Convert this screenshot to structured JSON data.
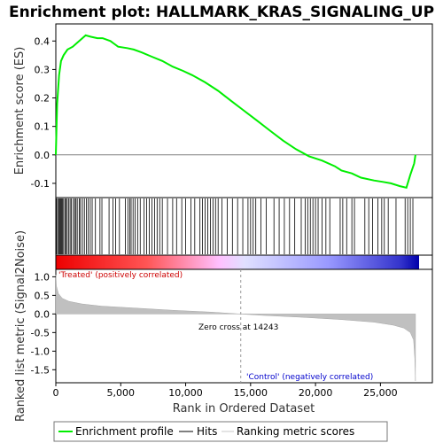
{
  "chart_data": [
    {
      "type": "line",
      "title": "Enrichment plot: HALLMARK_KRAS_SIGNALING_UP",
      "ylabel": "Enrichment score (ES)",
      "ylim": [
        -0.15,
        0.46
      ],
      "xlim": [
        0,
        29000
      ],
      "yticks": [
        -0.1,
        0.0,
        0.1,
        0.2,
        0.3,
        0.4
      ],
      "ytick_labels": [
        "-0.1",
        "0.0",
        "0.1",
        "0.2",
        "0.3",
        "0.4"
      ],
      "color": "#00ee00",
      "series": [
        {
          "name": "Enrichment profile",
          "x": [
            0,
            100,
            250,
            400,
            600,
            900,
            1300,
            1800,
            2300,
            2700,
            3200,
            3600,
            4200,
            4800,
            5500,
            6000,
            6600,
            7400,
            8200,
            9000,
            9800,
            10500,
            11500,
            12500,
            13500,
            14500,
            15500,
            16500,
            17500,
            18500,
            19500,
            20500,
            21500,
            22000,
            22800,
            23500,
            24500,
            25200,
            25800,
            26500,
            27000,
            27300,
            27600,
            27700
          ],
          "y": [
            0.0,
            0.18,
            0.28,
            0.33,
            0.35,
            0.37,
            0.38,
            0.4,
            0.42,
            0.415,
            0.41,
            0.41,
            0.4,
            0.38,
            0.375,
            0.37,
            0.36,
            0.345,
            0.33,
            0.31,
            0.295,
            0.28,
            0.255,
            0.225,
            0.19,
            0.155,
            0.12,
            0.085,
            0.05,
            0.02,
            -0.005,
            -0.02,
            -0.04,
            -0.055,
            -0.065,
            -0.08,
            -0.09,
            -0.095,
            -0.1,
            -0.11,
            -0.115,
            -0.07,
            -0.03,
            0.0
          ]
        }
      ]
    },
    {
      "type": "bar",
      "title": "",
      "series": [
        {
          "name": "Hits",
          "x": [
            60,
            150,
            230,
            300,
            380,
            450,
            520,
            600,
            700,
            780,
            880,
            1000,
            1100,
            1200,
            1350,
            1450,
            1550,
            1650,
            1800,
            1900,
            2050,
            2200,
            2350,
            2500,
            2650,
            2800,
            3050,
            3400,
            3550,
            4100,
            4400,
            4600,
            4900,
            5350,
            5550,
            5700,
            5800,
            5950,
            6100,
            6300,
            6500,
            6800,
            7000,
            7200,
            7400,
            7600,
            7800,
            8000,
            8200,
            8600,
            9000,
            9300,
            9700,
            10000,
            10400,
            10700,
            11100,
            11300,
            11500,
            11700,
            11900,
            12100,
            12300,
            12500,
            12800,
            13200,
            13600,
            14000,
            14400,
            14800,
            15000,
            15200,
            15400,
            15800,
            16200,
            16800,
            17200,
            17600,
            18000,
            18400,
            18900,
            19200,
            19400,
            19600,
            19800,
            20000,
            20200,
            20500,
            20800,
            21100,
            21900,
            22100,
            22400,
            22800,
            23000,
            23800,
            24100,
            24400,
            24800,
            25100,
            25300,
            25600,
            26200,
            26900,
            27100,
            27300,
            27500
          ]
        }
      ]
    },
    {
      "type": "area",
      "title": "",
      "xlabel": "Rank in Ordered Dataset",
      "ylabel": "Ranked list metric (Signal2Noise)",
      "ylim": [
        -1.85,
        1.2
      ],
      "xlim": [
        0,
        29000
      ],
      "yticks": [
        -1.5,
        -1.0,
        -0.5,
        0.0,
        0.5,
        1.0
      ],
      "ytick_labels": [
        "-1.5",
        "-1.0",
        "-0.5",
        "0.0",
        "0.5",
        "1.0"
      ],
      "xticks": [
        0,
        5000,
        10000,
        15000,
        20000,
        25000
      ],
      "xtick_labels": [
        "0",
        "5,000",
        "10,000",
        "15,000",
        "20,000",
        "25,000"
      ],
      "zero_cross": 14243,
      "series": [
        {
          "name": "Ranking metric scores",
          "x": [
            0,
            50,
            200,
            500,
            1000,
            2000,
            3500,
            6000,
            9000,
            12000,
            14243,
            16000,
            19000,
            22000,
            24500,
            26000,
            26800,
            27300,
            27550,
            27650,
            27700
          ],
          "y": [
            1.05,
            0.75,
            0.55,
            0.42,
            0.34,
            0.27,
            0.21,
            0.16,
            0.1,
            0.05,
            0.0,
            -0.04,
            -0.09,
            -0.15,
            -0.22,
            -0.3,
            -0.38,
            -0.5,
            -0.7,
            -1.2,
            -1.8
          ]
        }
      ],
      "annotations": [
        {
          "text": "'Treated' (positively correlated)",
          "color": "#cc0000"
        },
        {
          "text": "Zero cross at 14243",
          "color": "#000000"
        },
        {
          "text": "'Control' (negatively correlated)",
          "color": "#0000cc"
        }
      ]
    }
  ],
  "legend": {
    "items": [
      {
        "label": "Enrichment profile",
        "color": "#00ee00"
      },
      {
        "label": "Hits",
        "color": "#000000"
      },
      {
        "label": "Ranking metric scores",
        "color": "#c8c8c8"
      }
    ]
  }
}
